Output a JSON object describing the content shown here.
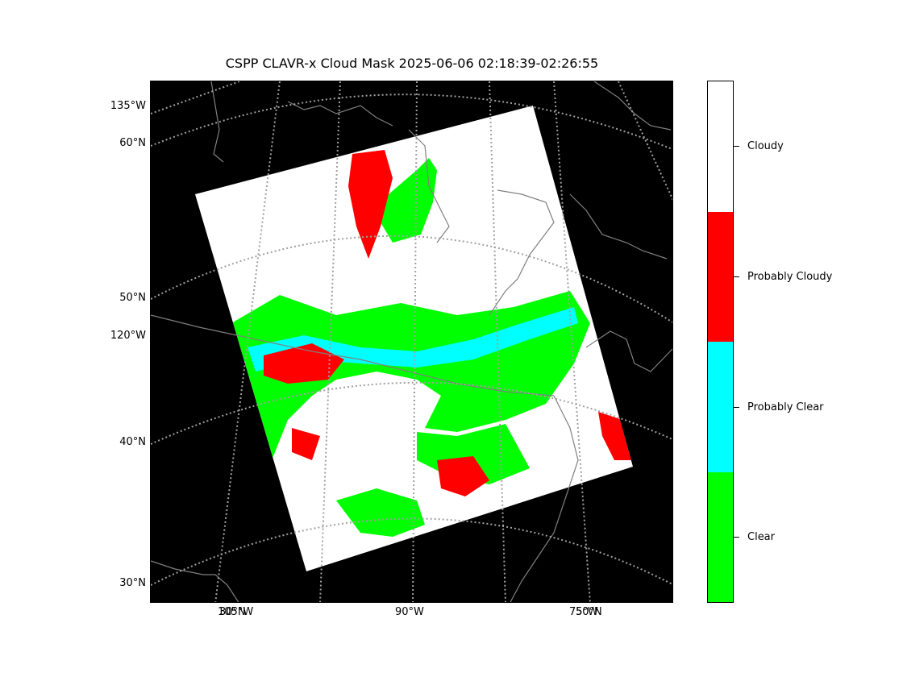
{
  "title": "CSPP CLAVR-x Cloud Mask 2025-06-06 02:18:39-02:26:55",
  "map": {
    "background": "#000000",
    "coastline_color": "#808080",
    "gridline_color": "#a0a0a0",
    "gridline_style": "dotted",
    "lat_labels": [
      "135°W",
      "60°N",
      "50°N",
      "120°W",
      "40°N",
      "30°N"
    ],
    "lon_labels": [
      "105°W",
      "30°N",
      "90°W",
      "75°W",
      "50°N"
    ]
  },
  "colorbar": {
    "categories": [
      {
        "label": "Cloudy",
        "color": "#ffffff"
      },
      {
        "label": "Probably Cloudy",
        "color": "#ff0000"
      },
      {
        "label": "Probably Clear",
        "color": "#00ffff"
      },
      {
        "label": "Clear",
        "color": "#00ff00"
      }
    ]
  }
}
